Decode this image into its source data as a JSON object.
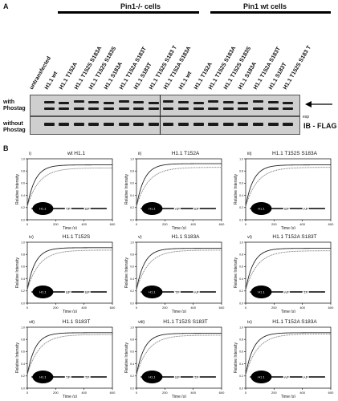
{
  "panelA": {
    "letter": "A",
    "groups": [
      {
        "label": "Pin1-/- cells"
      },
      {
        "label": "Pin1 wt cells"
      }
    ],
    "lanes": [
      "untransfected",
      "H1.1 wt",
      "H1.1 T152A",
      "H1.1 T152S S183A",
      "H1.1 T152S S183S",
      "H1.1 S183A",
      "H1.1 T152A S183T",
      "H1.1 S183T",
      "H1.1 T152S S183 T",
      "H1.1 T152A S183A",
      "H1.1 wt",
      "H1.1 T152A",
      "H1.1 T152S S183A",
      "H1.1 T152S S183S",
      "H1.1 S183A",
      "H1.1 T152A S183T",
      "H1.1 S183T",
      "H1.1 T152S S183 T"
    ],
    "rows": [
      {
        "label_line1": "with",
        "label_line2": "Phostag"
      },
      {
        "label_line1": "without",
        "label_line2": "Phostag"
      }
    ],
    "side_label": "IB - FLAG",
    "small_label": "exp"
  },
  "panelB": {
    "letter": "B",
    "ylabel": "Relative Intensity",
    "xlabel": "Time (s)",
    "domain_label": "H1.1",
    "panels": [
      {
        "num": "i)",
        "title": "wt H1.1",
        "site1": "TP",
        "site2": "SP",
        "plateau_a": 0.9,
        "plateau_b": 0.85
      },
      {
        "num": "ii)",
        "title": "H1.1 T152A",
        "site1": "AP",
        "site2": "SP",
        "plateau_a": 0.92,
        "plateau_b": 0.86
      },
      {
        "num": "iii)",
        "title": "H1.1 T152S S183A",
        "site1": "SP",
        "site2": "AP",
        "plateau_a": 0.9,
        "plateau_b": 0.86
      },
      {
        "num": "iv)",
        "title": "H1.1 T152S",
        "site1": "SP",
        "site2": "SP",
        "plateau_a": 0.91,
        "plateau_b": 0.87
      },
      {
        "num": "v)",
        "title": "H1.1 S183A",
        "site1": "TP",
        "site2": "AP",
        "plateau_a": 0.9,
        "plateau_b": 0.87
      },
      {
        "num": "vi)",
        "title": "H1.1 T152A S183T",
        "site1": "AP",
        "site2": "TP",
        "plateau_a": 0.9,
        "plateau_b": 0.86
      },
      {
        "num": "vii)",
        "title": "H1.1 S183T",
        "site1": "TP",
        "site2": "TP",
        "plateau_a": 0.91,
        "plateau_b": 0.88
      },
      {
        "num": "viii)",
        "title": "H1.1 T152S S183T",
        "site1": "SP",
        "site2": "TP",
        "plateau_a": 0.9,
        "plateau_b": 0.87
      },
      {
        "num": "ix)",
        "title": "H1.1 T152A S183A",
        "site1": "AP",
        "site2": "AP",
        "plateau_a": 0.91,
        "plateau_b": 0.89
      }
    ],
    "x_ticks": [
      "0",
      "200",
      "400",
      "600"
    ],
    "y_ticks": [
      "0.0",
      "0.2",
      "0.4",
      "0.6",
      "0.8",
      "1.0"
    ],
    "xlim": [
      0,
      600
    ],
    "ylim": [
      0,
      1
    ]
  }
}
